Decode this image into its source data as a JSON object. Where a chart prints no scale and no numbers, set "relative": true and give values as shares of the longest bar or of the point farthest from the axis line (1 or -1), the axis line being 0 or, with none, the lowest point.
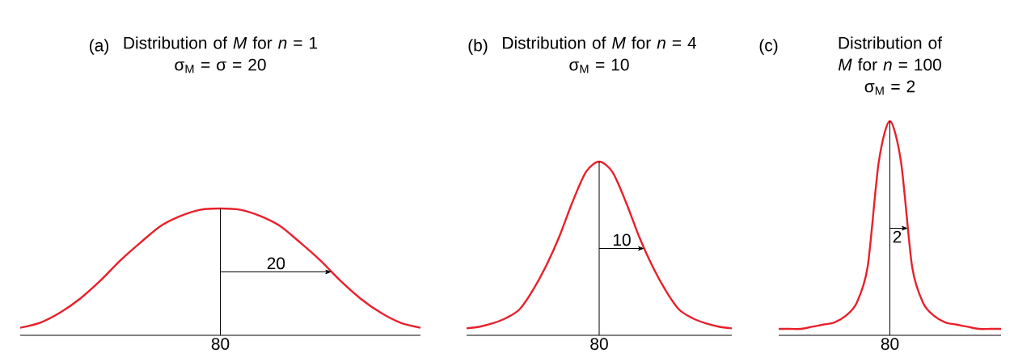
{
  "chart_data": [
    {
      "type": "line",
      "relative": true,
      "title": "Distribution of *M* for *n* = 1",
      "subtitle": "σ$_{M}$ = σ = 20",
      "categories": [
        null,
        null,
        null,
        null,
        null,
        null,
        null,
        null,
        null,
        null,
        null,
        null,
        null,
        null,
        null,
        null,
        null,
        null,
        null,
        null,
        null
      ],
      "series": [
        {
          "color": "#e8202a",
          "values": [
            0.06,
            0.1,
            0.18,
            0.29,
            0.43,
            0.59,
            0.73,
            0.86,
            0.94,
            0.99,
            1,
            0.99,
            0.94,
            0.86,
            0.73,
            0.59,
            0.43,
            0.29,
            0.18,
            0.1,
            0.06
          ]
        }
      ],
      "annotations": [
        "(a)",
        "20",
        "80"
      ]
    },
    {
      "type": "line",
      "relative": true,
      "title": "Distribution of *M* for *n* = 4",
      "subtitle": "σ$_{M}$ = 10",
      "categories": [
        null,
        null,
        null,
        null,
        null,
        null,
        null,
        null,
        null,
        null,
        null,
        null,
        null,
        null,
        null,
        null,
        null,
        null,
        null,
        null,
        null
      ],
      "series": [
        {
          "color": "#e8202a",
          "values": [
            0.04,
            0.05,
            0.07,
            0.1,
            0.15,
            0.26,
            0.4,
            0.57,
            0.77,
            0.94,
            1,
            0.94,
            0.77,
            0.57,
            0.4,
            0.26,
            0.15,
            0.1,
            0.07,
            0.05,
            0.04
          ]
        }
      ],
      "annotations": [
        "(b)",
        "10",
        "80"
      ]
    },
    {
      "type": "line",
      "relative": true,
      "title": "Distribution of *M* for *n* = 100",
      "subtitle": "σ$_{M}$ = 2",
      "categories": [
        null,
        null,
        null,
        null,
        null,
        null,
        null,
        null,
        null,
        null,
        null,
        null,
        null,
        null,
        null,
        null,
        null,
        null,
        null,
        null,
        null
      ],
      "series": [
        {
          "color": "#e8202a",
          "values": [
            0.03,
            0.03,
            0.03,
            0.04,
            0.05,
            0.06,
            0.09,
            0.15,
            0.32,
            0.81,
            1,
            0.81,
            0.32,
            0.15,
            0.09,
            0.06,
            0.05,
            0.04,
            0.03,
            0.03,
            0.03
          ]
        }
      ],
      "annotations": [
        "(c)",
        "2",
        "80"
      ]
    }
  ]
}
